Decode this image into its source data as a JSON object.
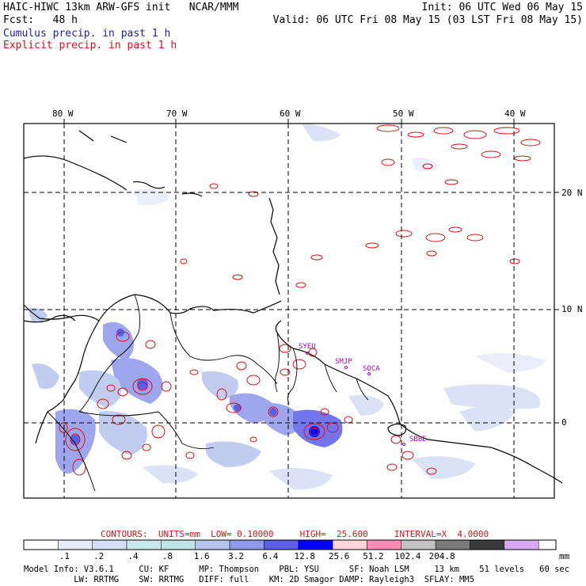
{
  "header": {
    "model_title": "HAIC-HIWC 13km ARW-GFS init   NCAR/MMM",
    "init": "Init: 06 UTC Wed 06 May 15",
    "fcst": "Fcst:   48 h",
    "valid": "Valid: 06 UTC Fri 08 May 15 (03 LST Fri 08 May 15)",
    "cumulus": "Cumulus precip. in past 1 h",
    "explicit": "Explicit precip. in past 1 h"
  },
  "map": {
    "lon_labels": [
      "80 W",
      "70 W",
      "60 W",
      "50 W",
      "40 W"
    ],
    "lat_labels": [
      "20 N",
      "10 N",
      "0"
    ],
    "stations": [
      "SYEU",
      "SMJP",
      "SOCA",
      "SBBE"
    ]
  },
  "contours": {
    "label": "CONTOURS:  UNITS=mm  LOW= 0.10000     HIGH=  25.600     INTERVAL=X  4.0000"
  },
  "colorbar": {
    "labels": [
      ".1",
      ".2",
      ".4",
      ".8",
      "1.6",
      "3.2",
      "6.4",
      "12.8",
      "25.6",
      "51.2",
      "102.4",
      "204.8"
    ],
    "unit": "mm",
    "colors": [
      "#ffffff",
      "#e8ecfa",
      "#d4def4",
      "#c8e8f0",
      "#bfe3e8",
      "#b6c4ee",
      "#8e98ea",
      "#5a5ee8",
      "#0000ff",
      "#ffd4d8",
      "#ff8cb4",
      "#c2c2c2",
      "#7a7a7a",
      "#3a3a3a",
      "#d8a8f0"
    ]
  },
  "footer": {
    "line1": "Model Info: V3.6.1     CU: KF      MP: Thompson    PBL: YSU      SF: Noah LSM     13 km    51 levels   60 sec",
    "line2": "          LW: RRTMG    SW: RRTMG   DIFF: full    KM: 2D Smagor DAMP: Rayleigh3  SFLAY: MM5"
  }
}
